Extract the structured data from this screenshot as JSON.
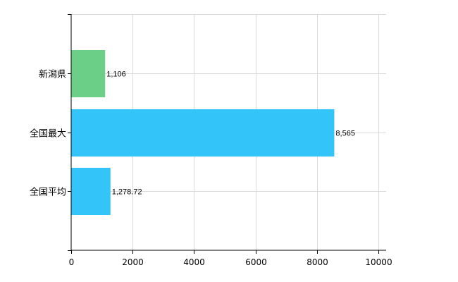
{
  "chart_data": {
    "type": "bar",
    "orientation": "horizontal",
    "categories": [
      "新潟県",
      "全国最大",
      "全国平均"
    ],
    "values": [
      1106,
      8565,
      1278.72
    ],
    "value_labels": [
      "1,106",
      "8,565",
      "1,278.72"
    ],
    "bar_colors": [
      "#6ccf87",
      "#33c4fa",
      "#33c4fa"
    ],
    "xlim": [
      0,
      10000
    ],
    "xticks": [
      0,
      2000,
      4000,
      6000,
      8000,
      10000
    ],
    "xtick_labels": [
      "0",
      "2000",
      "4000",
      "6000",
      "8000",
      "10000"
    ],
    "grid": true,
    "legend": "none"
  }
}
